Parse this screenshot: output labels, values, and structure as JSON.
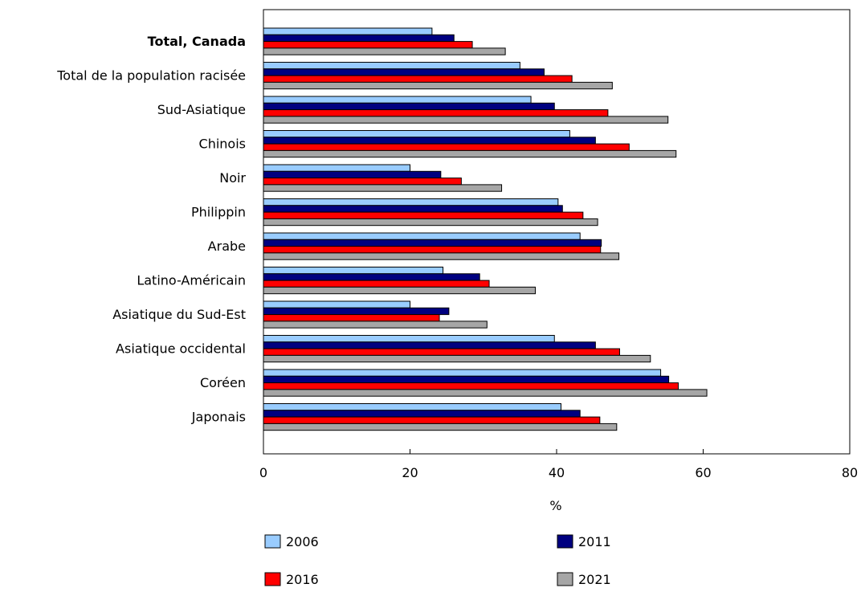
{
  "chart_data": {
    "type": "bar",
    "orientation": "horizontal",
    "categories": [
      "Total, Canada",
      "Total de la population racisée",
      "Sud-Asiatique",
      "Chinois",
      "Noir",
      "Philippin",
      "Arabe",
      "Latino-Américain",
      "Asiatique du Sud-Est",
      "Asiatique occidental",
      "Coréen",
      "Japonais"
    ],
    "bold_categories": [
      "Total, Canada"
    ],
    "series": [
      {
        "name": "2006",
        "color": "#99ccff",
        "values": [
          23.0,
          35.0,
          36.5,
          41.8,
          20.0,
          40.2,
          43.2,
          24.5,
          20.0,
          39.7,
          54.2,
          40.6
        ]
      },
      {
        "name": "2011",
        "color": "#000080",
        "values": [
          26.0,
          38.3,
          39.7,
          45.3,
          24.2,
          40.8,
          46.1,
          29.5,
          25.3,
          45.3,
          55.3,
          43.2
        ]
      },
      {
        "name": "2016",
        "color": "#ff0000",
        "values": [
          28.5,
          42.1,
          47.0,
          49.9,
          27.0,
          43.6,
          46.0,
          30.8,
          24.0,
          48.6,
          56.6,
          45.9
        ]
      },
      {
        "name": "2021",
        "color": "#a6a6a6",
        "values": [
          33.0,
          47.6,
          55.2,
          56.3,
          32.5,
          45.6,
          48.5,
          37.1,
          30.5,
          52.8,
          60.5,
          48.2
        ]
      }
    ],
    "xlabel": "%",
    "xlim": [
      0,
      80
    ],
    "xticks": [
      "0",
      "20",
      "40",
      "60",
      "80"
    ],
    "grid": false,
    "legend_position": "bottom"
  }
}
